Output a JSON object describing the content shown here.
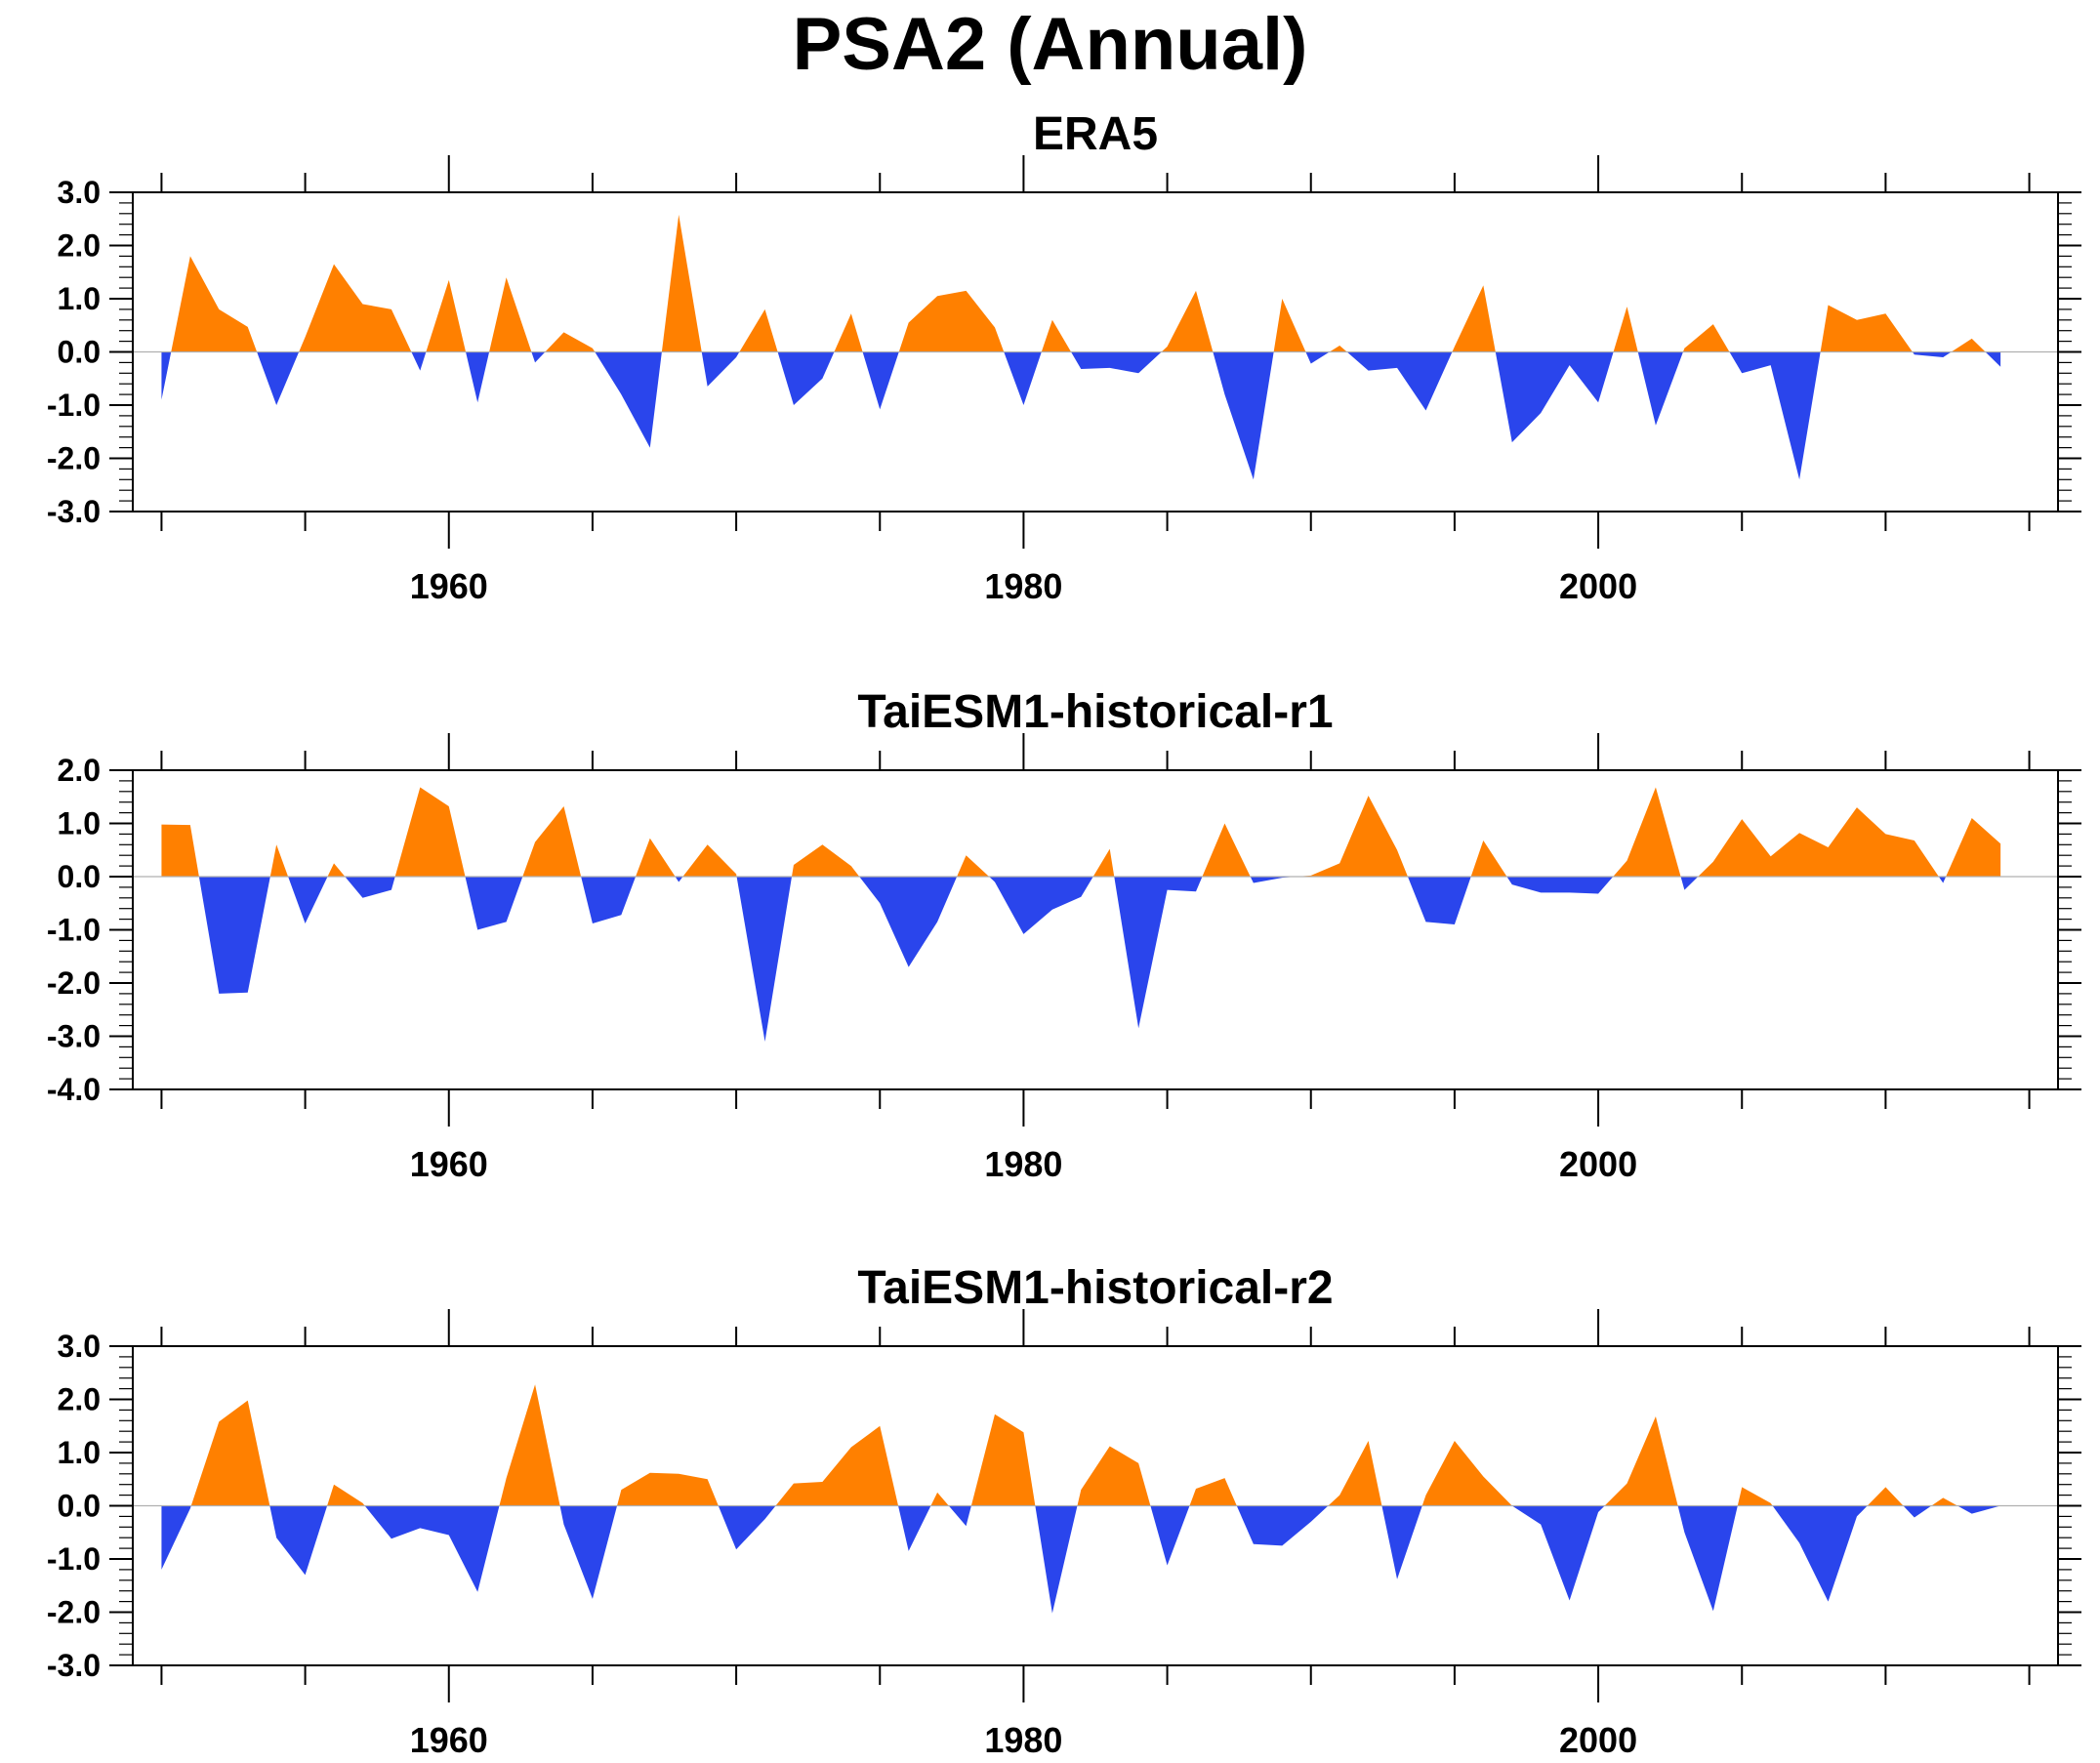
{
  "figure": {
    "title": "PSA2 (Annual)"
  },
  "colors": {
    "positive": "#ff8000",
    "negative": "#2a45ec",
    "axis": "#000000"
  },
  "chart_data": [
    {
      "type": "area",
      "title": "ERA5",
      "xlabel": "",
      "ylabel": "",
      "xlim": [
        1949,
        2016
      ],
      "ylim": [
        -3.0,
        3.0
      ],
      "yticks": [
        -3.0,
        -2.0,
        -1.0,
        0.0,
        1.0,
        2.0,
        3.0
      ],
      "ytick_labels": [
        "-3.0",
        "-2.0",
        "-1.0",
        "0.0",
        "1.0",
        "2.0",
        "3.0"
      ],
      "xticks": [
        1960,
        1980,
        2000
      ],
      "xtick_labels": [
        "1960",
        "1980",
        "2000"
      ],
      "grid": false,
      "legend": "none",
      "x": [
        1950,
        1951,
        1952,
        1953,
        1954,
        1955,
        1956,
        1957,
        1958,
        1959,
        1960,
        1961,
        1962,
        1963,
        1964,
        1965,
        1966,
        1967,
        1968,
        1969,
        1970,
        1971,
        1972,
        1973,
        1974,
        1975,
        1976,
        1977,
        1978,
        1979,
        1980,
        1981,
        1982,
        1983,
        1984,
        1985,
        1986,
        1987,
        1988,
        1989,
        1990,
        1991,
        1992,
        1993,
        1994,
        1995,
        1996,
        1997,
        1998,
        1999,
        2000,
        2001,
        2002,
        2003,
        2004,
        2005,
        2006,
        2007,
        2008,
        2009,
        2010,
        2011,
        2012,
        2013,
        2014
      ],
      "values": [
        -0.9,
        1.8,
        0.8,
        0.47,
        -1.0,
        0.28,
        1.65,
        0.9,
        0.8,
        -0.35,
        1.35,
        -0.95,
        1.4,
        -0.2,
        0.37,
        0.07,
        -0.8,
        -1.8,
        2.58,
        -0.65,
        -0.1,
        0.8,
        -1.0,
        -0.5,
        0.72,
        -1.08,
        0.55,
        1.05,
        1.15,
        0.46,
        -1.0,
        0.6,
        -0.32,
        -0.3,
        -0.4,
        0.1,
        1.15,
        -0.8,
        -2.4,
        1.0,
        -0.22,
        0.12,
        -0.35,
        -0.3,
        -1.1,
        0.1,
        1.25,
        -1.7,
        -1.15,
        -0.25,
        -0.95,
        0.85,
        -1.38,
        0.07,
        0.52,
        -0.4,
        -0.25,
        -2.4,
        0.88,
        0.6,
        0.72,
        -0.05,
        -0.1,
        0.25,
        -0.28
      ]
    },
    {
      "type": "area",
      "title": "TaiESM1-historical-r1",
      "xlabel": "",
      "ylabel": "",
      "xlim": [
        1949,
        2016
      ],
      "ylim": [
        -4.0,
        2.0
      ],
      "yticks": [
        -4.0,
        -3.0,
        -2.0,
        -1.0,
        0.0,
        1.0,
        2.0
      ],
      "ytick_labels": [
        "-4.0",
        "-3.0",
        "-2.0",
        "-1.0",
        "0.0",
        "1.0",
        "2.0"
      ],
      "xticks": [
        1960,
        1980,
        2000
      ],
      "xtick_labels": [
        "1960",
        "1980",
        "2000"
      ],
      "grid": false,
      "legend": "none",
      "x": [
        1950,
        1951,
        1952,
        1953,
        1954,
        1955,
        1956,
        1957,
        1958,
        1959,
        1960,
        1961,
        1962,
        1963,
        1964,
        1965,
        1966,
        1967,
        1968,
        1969,
        1970,
        1971,
        1972,
        1973,
        1974,
        1975,
        1976,
        1977,
        1978,
        1979,
        1980,
        1981,
        1982,
        1983,
        1984,
        1985,
        1986,
        1987,
        1988,
        1989,
        1990,
        1991,
        1992,
        1993,
        1994,
        1995,
        1996,
        1997,
        1998,
        1999,
        2000,
        2001,
        2002,
        2003,
        2004,
        2005,
        2006,
        2007,
        2008,
        2009,
        2010,
        2011,
        2012,
        2013,
        2014
      ],
      "values": [
        0.98,
        0.97,
        -2.2,
        -2.18,
        0.6,
        -0.88,
        0.25,
        -0.4,
        -0.25,
        1.68,
        1.32,
        -1.0,
        -0.85,
        0.65,
        1.32,
        -0.88,
        -0.72,
        0.72,
        -0.1,
        0.6,
        0.05,
        -3.1,
        0.22,
        0.6,
        0.2,
        -0.5,
        -1.7,
        -0.85,
        0.4,
        -0.1,
        -1.08,
        -0.62,
        -0.38,
        0.52,
        -2.85,
        -0.25,
        -0.28,
        1.0,
        -0.12,
        -0.02,
        0.02,
        0.25,
        1.52,
        0.5,
        -0.85,
        -0.9,
        0.68,
        -0.15,
        -0.3,
        -0.3,
        -0.32,
        0.3,
        1.68,
        -0.25,
        0.28,
        1.08,
        0.38,
        0.82,
        0.55,
        1.3,
        0.8,
        0.68,
        -0.12,
        1.1,
        0.62
      ]
    },
    {
      "type": "area",
      "title": "TaiESM1-historical-r2",
      "xlabel": "",
      "ylabel": "",
      "xlim": [
        1949,
        2016
      ],
      "ylim": [
        -3.0,
        3.0
      ],
      "yticks": [
        -3.0,
        -2.0,
        -1.0,
        0.0,
        1.0,
        2.0,
        3.0
      ],
      "ytick_labels": [
        "-3.0",
        "-2.0",
        "-1.0",
        "0.0",
        "1.0",
        "2.0",
        "3.0"
      ],
      "xticks": [
        1960,
        1980,
        2000
      ],
      "xtick_labels": [
        "1960",
        "1980",
        "2000"
      ],
      "grid": false,
      "legend": "none",
      "x": [
        1950,
        1951,
        1952,
        1953,
        1954,
        1955,
        1956,
        1957,
        1958,
        1959,
        1960,
        1961,
        1962,
        1963,
        1964,
        1965,
        1966,
        1967,
        1968,
        1969,
        1970,
        1971,
        1972,
        1973,
        1974,
        1975,
        1976,
        1977,
        1978,
        1979,
        1980,
        1981,
        1982,
        1983,
        1984,
        1985,
        1986,
        1987,
        1988,
        1989,
        1990,
        1991,
        1992,
        1993,
        1994,
        1995,
        1996,
        1997,
        1998,
        1999,
        2000,
        2001,
        2002,
        2003,
        2004,
        2005,
        2006,
        2007,
        2008,
        2009,
        2010,
        2011,
        2012,
        2013,
        2014
      ],
      "values": [
        -1.2,
        -0.05,
        1.58,
        1.98,
        -0.6,
        -1.3,
        0.4,
        0.05,
        -0.62,
        -0.42,
        -0.55,
        -1.62,
        0.52,
        2.28,
        -0.35,
        -1.75,
        0.3,
        0.62,
        0.6,
        0.5,
        -0.82,
        -0.25,
        0.42,
        0.45,
        1.1,
        1.5,
        -0.85,
        0.25,
        -0.38,
        1.72,
        1.38,
        -2.02,
        0.3,
        1.12,
        0.8,
        -1.12,
        0.32,
        0.52,
        -0.72,
        -0.75,
        -0.3,
        0.2,
        1.22,
        -1.38,
        0.2,
        1.22,
        0.55,
        0.0,
        -0.35,
        -1.78,
        -0.12,
        0.42,
        1.68,
        -0.5,
        -1.98,
        0.35,
        0.05,
        -0.7,
        -1.8,
        -0.2,
        0.35,
        -0.22,
        0.15,
        -0.15,
        0.0
      ]
    }
  ]
}
